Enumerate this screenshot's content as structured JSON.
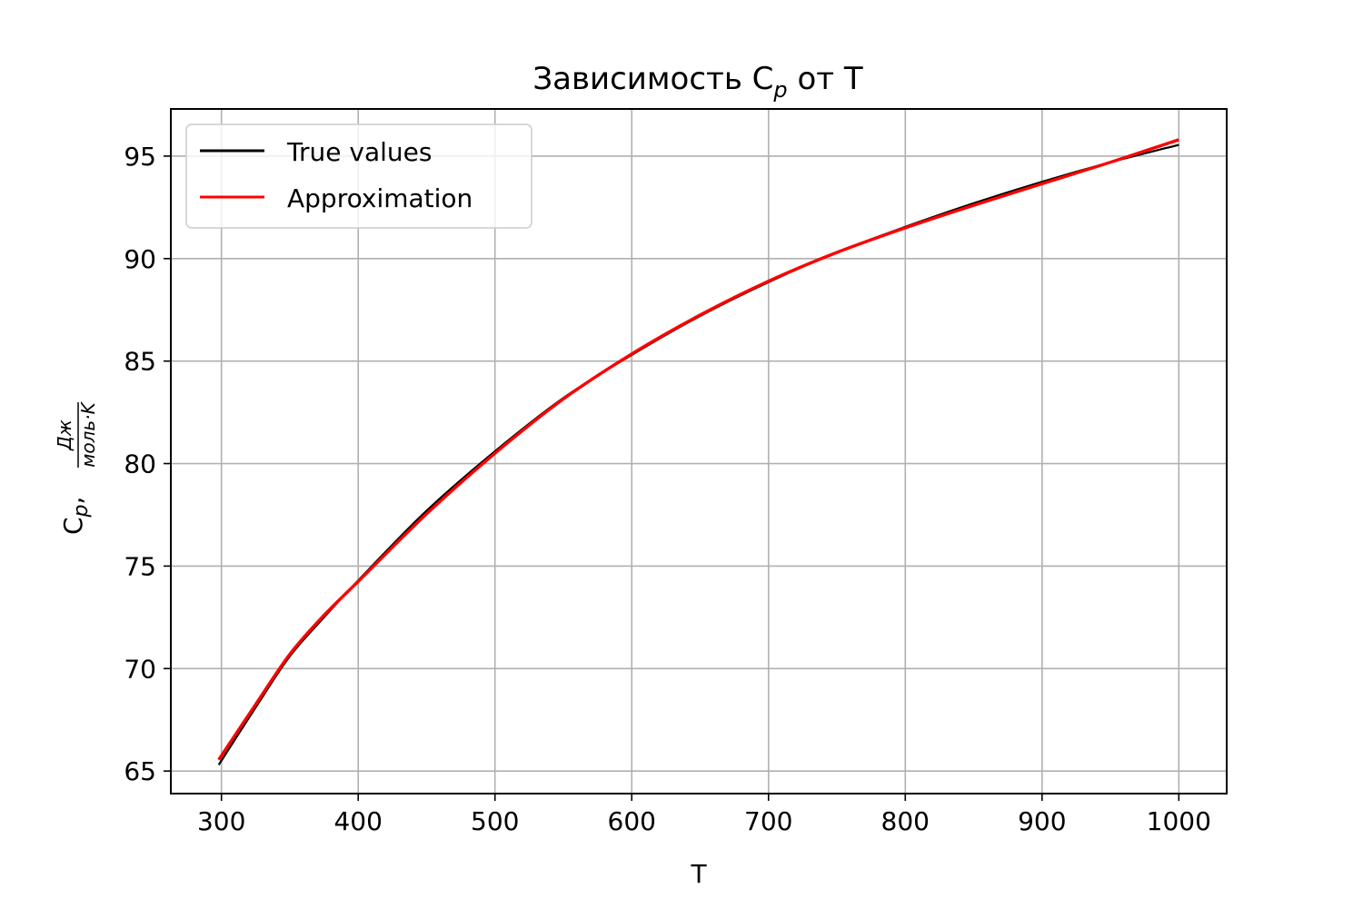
{
  "chart_data": {
    "type": "line",
    "title": "Зависимость C",
    "title_sub": "p",
    "title_tail": " от T",
    "xlabel": "T",
    "ylabel": {
      "main": "C",
      "sub": "p",
      "sep": ",",
      "unit_numerator": "Дж",
      "unit_denominator": "моль·K"
    },
    "xlim": [
      263,
      1035
    ],
    "ylim": [
      63.9,
      97.3
    ],
    "xticks": [
      300,
      400,
      500,
      600,
      700,
      800,
      900,
      1000
    ],
    "yticks": [
      65,
      70,
      75,
      80,
      85,
      90,
      95
    ],
    "grid": true,
    "legend_position": "upper-left",
    "series": [
      {
        "name": "True values",
        "color": "#000000",
        "x": [
          298,
          325,
          350,
          375,
          400,
          450,
          500,
          550,
          600,
          650,
          700,
          750,
          800,
          850,
          900,
          950,
          1000
        ],
        "y": [
          65.3,
          68.1,
          70.6,
          72.5,
          74.3,
          77.7,
          80.6,
          83.2,
          85.3,
          87.2,
          88.85,
          90.3,
          91.55,
          92.7,
          93.75,
          94.7,
          95.55
        ]
      },
      {
        "name": "Approximation",
        "color": "#ff0000",
        "x": [
          298,
          325,
          350,
          375,
          400,
          450,
          500,
          550,
          600,
          650,
          700,
          750,
          800,
          850,
          900,
          950,
          1000
        ],
        "y": [
          65.55,
          68.25,
          70.7,
          72.6,
          74.25,
          77.55,
          80.5,
          83.15,
          85.35,
          87.25,
          88.9,
          90.3,
          91.5,
          92.6,
          93.65,
          94.7,
          95.8
        ]
      }
    ]
  }
}
